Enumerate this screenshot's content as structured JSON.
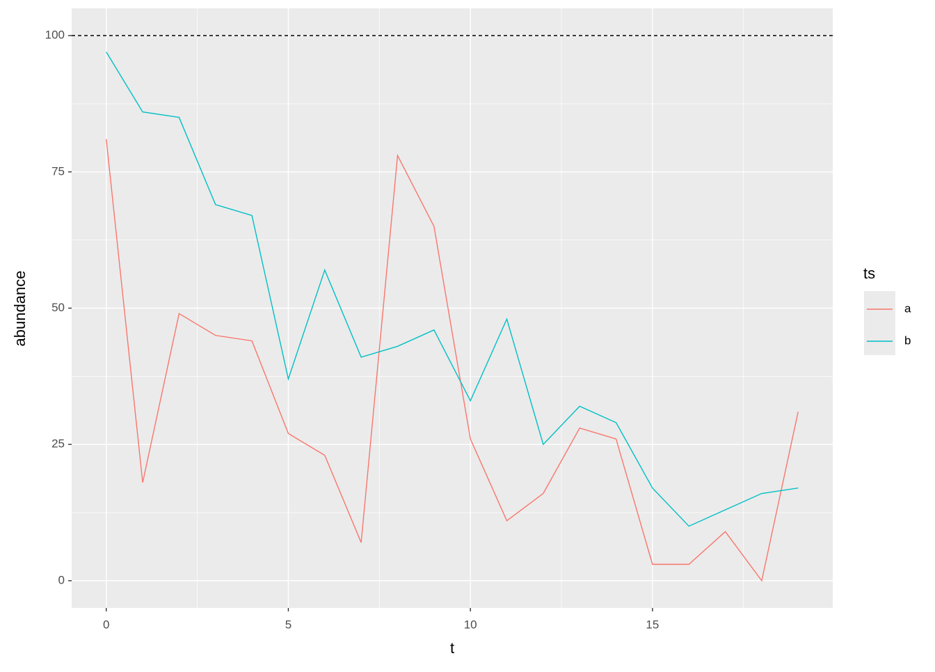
{
  "chart_data": {
    "type": "line",
    "x": [
      0,
      1,
      2,
      3,
      4,
      5,
      6,
      7,
      8,
      9,
      10,
      11,
      12,
      13,
      14,
      15,
      16,
      17,
      18,
      19
    ],
    "series": [
      {
        "name": "a",
        "color": "#F8766D",
        "values": [
          81,
          18,
          49,
          45,
          44,
          27,
          23,
          7,
          78,
          65,
          26,
          11,
          16,
          28,
          26,
          3,
          3,
          9,
          0,
          31
        ]
      },
      {
        "name": "b",
        "color": "#00BFC4",
        "values": [
          97,
          86,
          85,
          69,
          67,
          37,
          57,
          41,
          43,
          46,
          33,
          48,
          25,
          32,
          29,
          17,
          10,
          13,
          16,
          17
        ]
      }
    ],
    "xlabel": "t",
    "ylabel": "abundance",
    "legend_title": "ts",
    "xlim": [
      -0.95,
      19.95
    ],
    "ylim": [
      -5,
      105
    ],
    "xticks": [
      0,
      5,
      10,
      15
    ],
    "yticks": [
      0,
      25,
      50,
      75,
      100
    ],
    "xminor": [
      2.5,
      7.5,
      12.5,
      17.5
    ],
    "yminor": [
      12.5,
      37.5,
      62.5,
      87.5
    ],
    "hline": 100,
    "grid": true,
    "legend": "right"
  }
}
